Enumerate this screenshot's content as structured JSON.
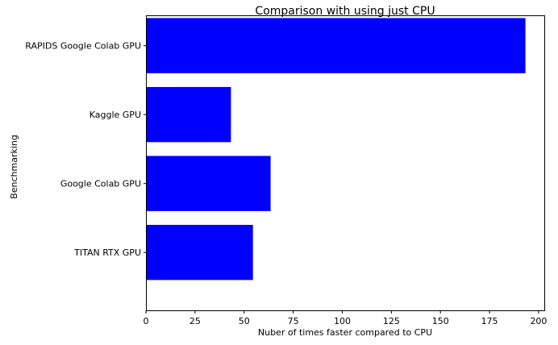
{
  "chart_data": {
    "type": "bar",
    "orientation": "horizontal",
    "title": "Comparison with using just CPU",
    "xlabel": "Nuber of times faster compared to CPU",
    "ylabel": "Benchmarking",
    "categories": [
      "TITAN RTX GPU",
      "Google Colab GPU",
      "Kaggle GPU",
      "RAPIDS Google Colab GPU"
    ],
    "values": [
      54.5,
      63.5,
      43.3,
      193.3
    ],
    "xlim": [
      0,
      202.9
    ],
    "xticks": [
      0,
      25,
      50,
      75,
      100,
      125,
      150,
      175,
      200
    ],
    "bar_color": "#0000ff",
    "grid": false,
    "legend": "none"
  }
}
